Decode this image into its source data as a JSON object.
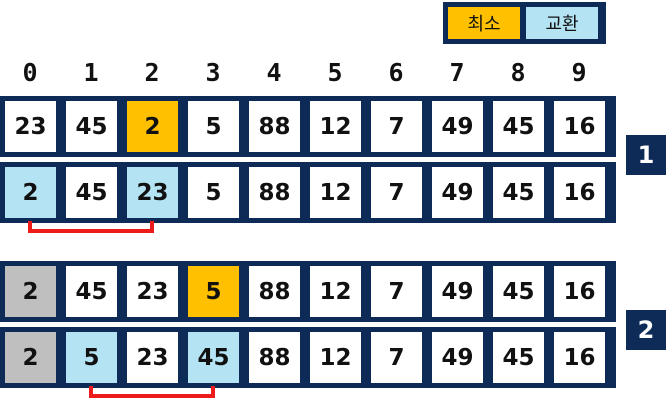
{
  "legend": {
    "min_label": "최소",
    "swap_label": "교환",
    "min_color": "#ffc000",
    "swap_color": "#b4e4f3"
  },
  "sorted_color": "#bfbfbf",
  "indices": [
    "0",
    "1",
    "2",
    "3",
    "4",
    "5",
    "6",
    "7",
    "8",
    "9"
  ],
  "steps": [
    {
      "label": "1",
      "rows": [
        {
          "cells": [
            {
              "value": "23",
              "state": "normal"
            },
            {
              "value": "45",
              "state": "normal"
            },
            {
              "value": "2",
              "state": "min"
            },
            {
              "value": "5",
              "state": "normal"
            },
            {
              "value": "88",
              "state": "normal"
            },
            {
              "value": "12",
              "state": "normal"
            },
            {
              "value": "7",
              "state": "normal"
            },
            {
              "value": "49",
              "state": "normal"
            },
            {
              "value": "45",
              "state": "normal"
            },
            {
              "value": "16",
              "state": "normal"
            }
          ]
        },
        {
          "cells": [
            {
              "value": "2",
              "state": "swap"
            },
            {
              "value": "45",
              "state": "normal"
            },
            {
              "value": "23",
              "state": "swap"
            },
            {
              "value": "5",
              "state": "normal"
            },
            {
              "value": "88",
              "state": "normal"
            },
            {
              "value": "12",
              "state": "normal"
            },
            {
              "value": "7",
              "state": "normal"
            },
            {
              "value": "49",
              "state": "normal"
            },
            {
              "value": "45",
              "state": "normal"
            },
            {
              "value": "16",
              "state": "normal"
            }
          ],
          "swap_from": 0,
          "swap_to": 2
        }
      ]
    },
    {
      "label": "2",
      "rows": [
        {
          "cells": [
            {
              "value": "2",
              "state": "sorted"
            },
            {
              "value": "45",
              "state": "normal"
            },
            {
              "value": "23",
              "state": "normal"
            },
            {
              "value": "5",
              "state": "min"
            },
            {
              "value": "88",
              "state": "normal"
            },
            {
              "value": "12",
              "state": "normal"
            },
            {
              "value": "7",
              "state": "normal"
            },
            {
              "value": "49",
              "state": "normal"
            },
            {
              "value": "45",
              "state": "normal"
            },
            {
              "value": "16",
              "state": "normal"
            }
          ]
        },
        {
          "cells": [
            {
              "value": "2",
              "state": "sorted"
            },
            {
              "value": "5",
              "state": "swap"
            },
            {
              "value": "23",
              "state": "normal"
            },
            {
              "value": "45",
              "state": "swap"
            },
            {
              "value": "88",
              "state": "normal"
            },
            {
              "value": "12",
              "state": "normal"
            },
            {
              "value": "7",
              "state": "normal"
            },
            {
              "value": "49",
              "state": "normal"
            },
            {
              "value": "45",
              "state": "normal"
            },
            {
              "value": "16",
              "state": "normal"
            }
          ],
          "swap_from": 1,
          "swap_to": 3
        }
      ]
    }
  ]
}
